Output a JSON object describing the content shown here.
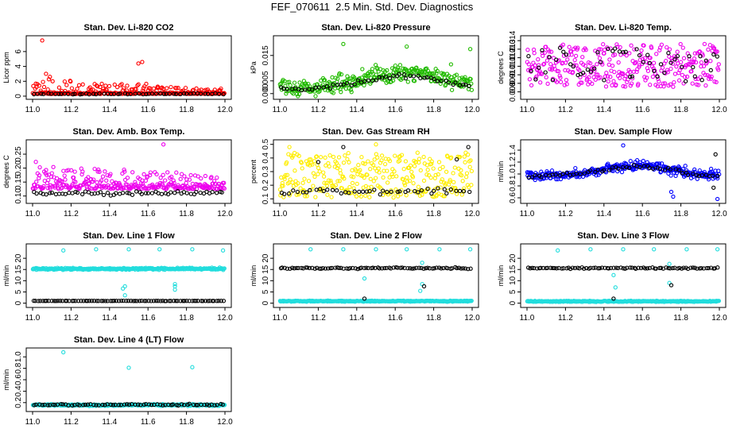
{
  "page": {
    "title": "FEF_070611  2.5 Min. Std. Dev. Diagnostics"
  },
  "chart_data": [
    {
      "type": "scatter",
      "title": "Stan. Dev. Li-820 CO2",
      "ylabel": "Licor ppm",
      "xlabel": "",
      "xlim": [
        11.0,
        12.0
      ],
      "ylim": [
        0,
        7.7
      ],
      "x_ticks": [
        "11.0",
        "11.2",
        "11.4",
        "11.6",
        "11.8",
        "12.0"
      ],
      "y_ticks": [
        {
          "v": 0,
          "label": "0"
        },
        {
          "v": 2,
          "label": "2"
        },
        {
          "v": 4,
          "label": "4"
        },
        {
          "v": 6,
          "label": "6"
        }
      ],
      "series": [
        {
          "name": "main",
          "color": "#ff0000",
          "profile": {
            "type": "base_spikes",
            "base": 0.3,
            "noise": 0.15,
            "spike_rate": 0.3,
            "spike_max": 2.0,
            "decay": 2.2
          }
        },
        {
          "name": "reference",
          "color": "#000000",
          "profile": {
            "type": "band",
            "base": 0.3,
            "noise": 0.05,
            "count": 55
          }
        }
      ],
      "outliers": [
        {
          "x": 11.05,
          "y": 7.5,
          "color": "#ff0000"
        },
        {
          "x": 11.55,
          "y": 4.4,
          "color": "#ff0000"
        },
        {
          "x": 11.57,
          "y": 4.6,
          "color": "#ff0000"
        },
        {
          "x": 11.07,
          "y": 3.0,
          "color": "#ff0000"
        },
        {
          "x": 11.09,
          "y": 2.6,
          "color": "#ff0000"
        }
      ]
    },
    {
      "type": "scatter",
      "title": "Stan. Dev. Li-820 Pressure",
      "ylabel": "kPa",
      "xlabel": "",
      "xlim": [
        11.0,
        12.0
      ],
      "ylim": [
        -0.001,
        0.0215
      ],
      "x_ticks": [
        "11.0",
        "11.2",
        "11.4",
        "11.6",
        "11.8",
        "12.0"
      ],
      "y_ticks": [
        {
          "v": 0,
          "label": "0.000"
        },
        {
          "v": 0.005,
          "label": "0.005"
        },
        {
          "v": 0.015,
          "label": "0.015"
        }
      ],
      "series": [
        {
          "name": "main",
          "color": "#22bb00",
          "profile": {
            "type": "hump",
            "base": 0.002,
            "peak": 0.0065,
            "center": 11.65,
            "width": 0.3,
            "noise": 0.0028
          }
        },
        {
          "name": "reference",
          "color": "#000000",
          "profile": {
            "type": "hump",
            "base": 0.0015,
            "peak": 0.0055,
            "center": 11.65,
            "width": 0.3,
            "noise": 0.0007,
            "count": 55
          }
        }
      ],
      "outliers": [
        {
          "x": 11.33,
          "y": 0.0195,
          "color": "#22bb00"
        },
        {
          "x": 11.66,
          "y": 0.0185,
          "color": "#22bb00"
        },
        {
          "x": 11.89,
          "y": 0.0115,
          "color": "#22bb00"
        },
        {
          "x": 11.99,
          "y": 0.0175,
          "color": "#22bb00"
        }
      ]
    },
    {
      "type": "scatter",
      "title": "Stan. Dev. Li-820 Temp.",
      "ylabel": "degrees C",
      "xlabel": "",
      "xlim": [
        11.0,
        12.0
      ],
      "ylim": [
        0.0075,
        0.0142
      ],
      "x_ticks": [
        "11.0",
        "11.2",
        "11.4",
        "11.6",
        "11.8",
        "12.0"
      ],
      "y_ticks": [
        {
          "v": 0.008,
          "label": "0.008"
        },
        {
          "v": 0.009,
          "label": "0.009"
        },
        {
          "v": 0.01,
          "label": "0.010"
        },
        {
          "v": 0.011,
          "label": "0.011"
        },
        {
          "v": 0.012,
          "label": "0.012"
        },
        {
          "v": 0.013,
          "label": "0.013"
        },
        {
          "v": 0.014,
          "label": "0.014"
        }
      ],
      "series": [
        {
          "name": "main",
          "color": "#ee00ee",
          "profile": {
            "type": "uniform",
            "min": 0.0086,
            "max": 0.0136
          }
        },
        {
          "name": "reference",
          "color": "#000000",
          "profile": {
            "type": "uniform",
            "min": 0.009,
            "max": 0.0132,
            "count": 55
          }
        }
      ],
      "outliers": []
    },
    {
      "type": "scatter",
      "title": "Stan. Dev. Amb. Box Temp.",
      "ylabel": "degrees C",
      "xlabel": "",
      "xlim": [
        11.0,
        12.0
      ],
      "ylim": [
        0.085,
        0.29
      ],
      "x_ticks": [
        "11.0",
        "11.2",
        "11.4",
        "11.6",
        "11.8",
        "12.0"
      ],
      "y_ticks": [
        {
          "v": 0.1,
          "label": "0.10"
        },
        {
          "v": 0.15,
          "label": "0.15"
        },
        {
          "v": 0.2,
          "label": "0.20"
        },
        {
          "v": 0.25,
          "label": "0.25"
        }
      ],
      "series": [
        {
          "name": "main",
          "color": "#ee00ee",
          "profile": {
            "type": "base_spikes",
            "base": 0.125,
            "noise": 0.018,
            "spike_rate": 0.35,
            "spike_max": 0.08,
            "decay": 1.5
          }
        },
        {
          "name": "reference",
          "color": "#000000",
          "profile": {
            "type": "band",
            "base": 0.11,
            "noise": 0.006,
            "count": 60
          }
        }
      ],
      "outliers": [
        {
          "x": 11.68,
          "y": 0.285,
          "color": "#ee00ee"
        }
      ]
    },
    {
      "type": "scatter",
      "title": "Stan. Dev. Gas Stream RH",
      "ylabel": "percent",
      "xlabel": "",
      "xlim": [
        11.0,
        12.0
      ],
      "ylim": [
        0.09,
        0.51
      ],
      "x_ticks": [
        "11.0",
        "11.2",
        "11.4",
        "11.6",
        "11.8",
        "12.0"
      ],
      "y_ticks": [
        {
          "v": 0.1,
          "label": "0.1"
        },
        {
          "v": 0.2,
          "label": "0.2"
        },
        {
          "v": 0.3,
          "label": "0.3"
        },
        {
          "v": 0.4,
          "label": "0.4"
        },
        {
          "v": 0.5,
          "label": "0.5"
        }
      ],
      "series": [
        {
          "name": "main",
          "color": "#ffee00",
          "profile": {
            "type": "uniform",
            "min": 0.11,
            "max": 0.44
          }
        },
        {
          "name": "reference",
          "color": "#000000",
          "profile": {
            "type": "band",
            "base": 0.155,
            "noise": 0.018,
            "count": 45
          }
        }
      ],
      "outliers": [
        {
          "x": 11.33,
          "y": 0.48,
          "color": "#000000"
        },
        {
          "x": 11.05,
          "y": 0.48,
          "color": "#ffee00"
        },
        {
          "x": 11.5,
          "y": 0.5,
          "color": "#ffee00"
        },
        {
          "x": 11.98,
          "y": 0.48,
          "color": "#000000"
        },
        {
          "x": 11.92,
          "y": 0.39,
          "color": "#000000"
        },
        {
          "x": 11.2,
          "y": 0.37,
          "color": "#000000"
        }
      ]
    },
    {
      "type": "scatter",
      "title": "Stan. Dev. Sample Flow",
      "ylabel": "ml/min",
      "xlabel": "",
      "xlim": [
        11.0,
        12.0
      ],
      "ylim": [
        0.56,
        1.52
      ],
      "x_ticks": [
        "11.0",
        "11.2",
        "11.4",
        "11.6",
        "11.8",
        "12.0"
      ],
      "y_ticks": [
        {
          "v": 0.6,
          "label": "0.6"
        },
        {
          "v": 0.8,
          "label": "0.8"
        },
        {
          "v": 1.0,
          "label": "1.0"
        },
        {
          "v": 1.2,
          "label": "1.2"
        },
        {
          "v": 1.4,
          "label": "1.4"
        }
      ],
      "series": [
        {
          "name": "main",
          "color": "#0000ff",
          "profile": {
            "type": "hump",
            "base": 0.97,
            "peak": 0.18,
            "center": 11.58,
            "width": 0.24,
            "noise": 0.07
          }
        },
        {
          "name": "reference",
          "color": "#000000",
          "profile": {
            "type": "hump",
            "base": 0.97,
            "peak": 0.16,
            "center": 11.58,
            "width": 0.24,
            "noise": 0.03,
            "count": 55
          }
        }
      ],
      "outliers": [
        {
          "x": 11.75,
          "y": 0.7,
          "color": "#0000ff"
        },
        {
          "x": 11.76,
          "y": 0.62,
          "color": "#0000ff"
        },
        {
          "x": 11.5,
          "y": 1.48,
          "color": "#0000ff"
        },
        {
          "x": 11.99,
          "y": 0.58,
          "color": "#0000ff"
        },
        {
          "x": 11.98,
          "y": 1.33,
          "color": "#000000"
        },
        {
          "x": 11.97,
          "y": 0.77,
          "color": "#000000"
        }
      ]
    },
    {
      "type": "scatter",
      "title": "Stan. Dev. Line 1 Flow",
      "ylabel": "ml/min",
      "xlabel": "",
      "xlim": [
        11.0,
        12.0
      ],
      "ylim": [
        -0.5,
        25
      ],
      "x_ticks": [
        "11.0",
        "11.2",
        "11.4",
        "11.6",
        "11.8",
        "12.0"
      ],
      "y_ticks": [
        {
          "v": 0,
          "label": "0"
        },
        {
          "v": 5,
          "label": "5"
        },
        {
          "v": 10,
          "label": "10"
        },
        {
          "v": 15,
          "label": "15"
        },
        {
          "v": 20,
          "label": "20"
        }
      ],
      "series": [
        {
          "name": "main",
          "color": "#22dddd",
          "profile": {
            "type": "band",
            "base": 15.3,
            "noise": 0.35
          }
        },
        {
          "name": "reference",
          "color": "#000000",
          "profile": {
            "type": "band",
            "base": 1.0,
            "noise": 0.05,
            "count": 85
          }
        }
      ],
      "outliers": [
        {
          "x": 11.16,
          "y": 23.5,
          "color": "#22dddd"
        },
        {
          "x": 11.33,
          "y": 24,
          "color": "#22dddd"
        },
        {
          "x": 11.5,
          "y": 24,
          "color": "#22dddd"
        },
        {
          "x": 11.66,
          "y": 24,
          "color": "#22dddd"
        },
        {
          "x": 11.83,
          "y": 24,
          "color": "#22dddd"
        },
        {
          "x": 11.99,
          "y": 23.5,
          "color": "#22dddd"
        },
        {
          "x": 11.48,
          "y": 7.5,
          "color": "#22dddd"
        },
        {
          "x": 11.48,
          "y": 3.5,
          "color": "#22dddd"
        },
        {
          "x": 11.47,
          "y": 6.5,
          "color": "#22dddd"
        },
        {
          "x": 11.74,
          "y": 7.5,
          "color": "#22dddd"
        },
        {
          "x": 11.74,
          "y": 8.5,
          "color": "#22dddd"
        },
        {
          "x": 11.74,
          "y": 6.0,
          "color": "#22dddd"
        }
      ]
    },
    {
      "type": "scatter",
      "title": "Stan. Dev. Line 2 Flow",
      "ylabel": "ml/min",
      "xlabel": "",
      "xlim": [
        11.0,
        12.0
      ],
      "ylim": [
        -0.5,
        25
      ],
      "x_ticks": [
        "11.0",
        "11.2",
        "11.4",
        "11.6",
        "11.8",
        "12.0"
      ],
      "y_ticks": [
        {
          "v": 0,
          "label": "0"
        },
        {
          "v": 5,
          "label": "5"
        },
        {
          "v": 10,
          "label": "10"
        },
        {
          "v": 15,
          "label": "15"
        },
        {
          "v": 20,
          "label": "20"
        }
      ],
      "series": [
        {
          "name": "main",
          "color": "#22dddd",
          "profile": {
            "type": "band",
            "base": 0.9,
            "noise": 0.2
          }
        },
        {
          "name": "reference",
          "color": "#000000",
          "profile": {
            "type": "band",
            "base": 15.6,
            "noise": 0.3,
            "count": 85
          }
        }
      ],
      "outliers": [
        {
          "x": 11.16,
          "y": 24,
          "color": "#22dddd"
        },
        {
          "x": 11.33,
          "y": 24,
          "color": "#22dddd"
        },
        {
          "x": 11.5,
          "y": 24,
          "color": "#22dddd"
        },
        {
          "x": 11.66,
          "y": 24,
          "color": "#22dddd"
        },
        {
          "x": 11.83,
          "y": 24,
          "color": "#22dddd"
        },
        {
          "x": 11.99,
          "y": 24,
          "color": "#22dddd"
        },
        {
          "x": 11.44,
          "y": 11,
          "color": "#22dddd"
        },
        {
          "x": 11.44,
          "y": 2,
          "color": "#000000"
        },
        {
          "x": 11.74,
          "y": 18,
          "color": "#22dddd"
        },
        {
          "x": 11.74,
          "y": 8.5,
          "color": "#22dddd"
        },
        {
          "x": 11.75,
          "y": 7.5,
          "color": "#000000"
        },
        {
          "x": 11.73,
          "y": 5.5,
          "color": "#22dddd"
        }
      ]
    },
    {
      "type": "scatter",
      "title": "Stan. Dev. Line 3 Flow",
      "ylabel": "ml/min",
      "xlabel": "",
      "xlim": [
        11.0,
        12.0
      ],
      "ylim": [
        -0.5,
        25
      ],
      "x_ticks": [
        "11.0",
        "11.2",
        "11.4",
        "11.6",
        "11.8",
        "12.0"
      ],
      "y_ticks": [
        {
          "v": 0,
          "label": "0"
        },
        {
          "v": 5,
          "label": "5"
        },
        {
          "v": 10,
          "label": "10"
        },
        {
          "v": 15,
          "label": "15"
        },
        {
          "v": 20,
          "label": "20"
        }
      ],
      "series": [
        {
          "name": "main",
          "color": "#22dddd",
          "profile": {
            "type": "band",
            "base": 0.8,
            "noise": 0.2
          }
        },
        {
          "name": "reference",
          "color": "#000000",
          "profile": {
            "type": "band",
            "base": 15.6,
            "noise": 0.3,
            "count": 85
          }
        }
      ],
      "outliers": [
        {
          "x": 11.16,
          "y": 23.5,
          "color": "#22dddd"
        },
        {
          "x": 11.33,
          "y": 24,
          "color": "#22dddd"
        },
        {
          "x": 11.5,
          "y": 24,
          "color": "#22dddd"
        },
        {
          "x": 11.66,
          "y": 24,
          "color": "#22dddd"
        },
        {
          "x": 11.83,
          "y": 24,
          "color": "#22dddd"
        },
        {
          "x": 11.99,
          "y": 24,
          "color": "#22dddd"
        },
        {
          "x": 11.45,
          "y": 12.5,
          "color": "#22dddd"
        },
        {
          "x": 11.46,
          "y": 7,
          "color": "#22dddd"
        },
        {
          "x": 11.45,
          "y": 2,
          "color": "#000000"
        },
        {
          "x": 11.74,
          "y": 17.5,
          "color": "#22dddd"
        },
        {
          "x": 11.74,
          "y": 9,
          "color": "#22dddd"
        },
        {
          "x": 11.75,
          "y": 8,
          "color": "#000000"
        }
      ]
    },
    {
      "type": "scatter",
      "title": "Stan. Dev. Line 4 (LT) Flow",
      "ylabel": "ml/min",
      "xlabel": "",
      "xlim": [
        11.0,
        12.0
      ],
      "ylim": [
        0.1,
        1.1
      ],
      "x_ticks": [
        "11.0",
        "11.2",
        "11.4",
        "11.6",
        "11.8",
        "12.0"
      ],
      "y_ticks": [
        {
          "v": 0.2,
          "label": "0.2"
        },
        {
          "v": 0.4,
          "label": "0.4"
        },
        {
          "v": 0.6,
          "label": "0.6"
        },
        {
          "v": 0.8,
          "label": "0.8"
        },
        {
          "v": 1.0,
          "label": "1.0"
        }
      ],
      "series": [
        {
          "name": "main",
          "color": "#22dddd",
          "profile": {
            "type": "band",
            "base": 0.158,
            "noise": 0.012
          }
        },
        {
          "name": "reference",
          "color": "#000000",
          "profile": {
            "type": "band",
            "base": 0.163,
            "noise": 0.012,
            "count": 70
          }
        }
      ],
      "outliers": [
        {
          "x": 11.16,
          "y": 1.08,
          "color": "#22dddd"
        },
        {
          "x": 11.5,
          "y": 0.81,
          "color": "#22dddd"
        },
        {
          "x": 11.83,
          "y": 0.82,
          "color": "#22dddd"
        }
      ]
    }
  ]
}
